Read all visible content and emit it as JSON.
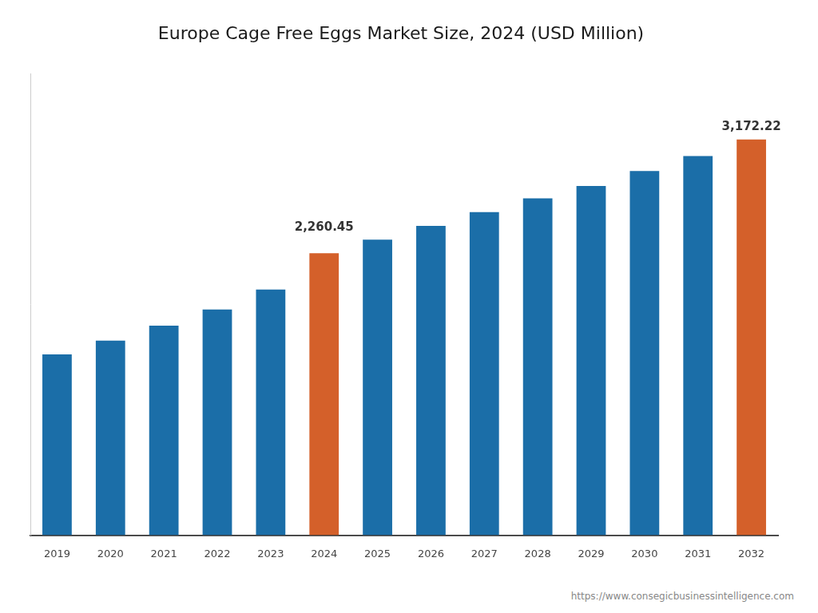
{
  "chart_data": {
    "type": "bar",
    "title": "Europe Cage Free Eggs Market Size, 2024 (USD Million)",
    "categories": [
      "2019",
      "2020",
      "2021",
      "2022",
      "2023",
      "2024",
      "2025",
      "2026",
      "2027",
      "2028",
      "2029",
      "2030",
      "2031",
      "2032"
    ],
    "values": [
      1450,
      1560,
      1680,
      1810,
      1970,
      2260.45,
      2370,
      2480,
      2590,
      2700,
      2800,
      2920,
      3040,
      3172.22
    ],
    "colors": [
      "#1B6EA8",
      "#1B6EA8",
      "#1B6EA8",
      "#1B6EA8",
      "#1B6EA8",
      "#D4602A",
      "#1B6EA8",
      "#1B6EA8",
      "#1B6EA8",
      "#1B6EA8",
      "#1B6EA8",
      "#1B6EA8",
      "#1B6EA8",
      "#D4602A"
    ],
    "data_labels": true,
    "value_labels": [
      null,
      null,
      null,
      null,
      null,
      "2,260.45",
      null,
      null,
      null,
      null,
      null,
      null,
      null,
      "3,172.22"
    ],
    "ylim": [
      0,
      3700
    ],
    "tick_labels": "x",
    "grid": false,
    "annotations": [
      "https://www.consegicbusinessintelligence.com"
    ]
  }
}
